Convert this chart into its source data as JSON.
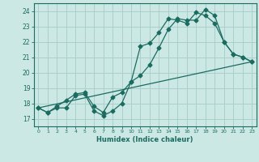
{
  "title": "",
  "xlabel": "Humidex (Indice chaleur)",
  "ylabel": "",
  "bg_color": "#cce8e4",
  "grid_color": "#aacfcb",
  "line_color": "#1a6b60",
  "xlim": [
    -0.5,
    23.5
  ],
  "ylim": [
    16.5,
    24.5
  ],
  "xticks": [
    0,
    1,
    2,
    3,
    4,
    5,
    6,
    7,
    8,
    9,
    10,
    11,
    12,
    13,
    14,
    15,
    16,
    17,
    18,
    19,
    20,
    21,
    22,
    23
  ],
  "yticks": [
    17,
    18,
    19,
    20,
    21,
    22,
    23,
    24
  ],
  "line1_x": [
    0,
    1,
    2,
    3,
    4,
    5,
    6,
    7,
    8,
    9,
    10,
    11,
    12,
    13,
    14,
    15,
    16,
    17,
    18,
    19,
    20,
    21,
    22,
    23
  ],
  "line1_y": [
    17.7,
    17.4,
    17.7,
    17.7,
    18.5,
    18.6,
    17.5,
    17.2,
    17.5,
    18.0,
    19.4,
    19.8,
    20.5,
    21.6,
    22.8,
    23.5,
    23.4,
    23.4,
    24.1,
    23.7,
    22.0,
    21.2,
    21.0,
    20.7
  ],
  "line2_x": [
    0,
    1,
    2,
    3,
    4,
    5,
    6,
    7,
    8,
    9,
    10,
    11,
    12,
    13,
    14,
    15,
    16,
    17,
    18,
    19,
    20,
    21,
    22,
    23
  ],
  "line2_y": [
    17.7,
    17.4,
    17.8,
    18.2,
    18.6,
    18.7,
    17.8,
    17.4,
    18.4,
    18.7,
    19.4,
    21.7,
    21.9,
    22.6,
    23.5,
    23.4,
    23.2,
    23.9,
    23.7,
    23.2,
    22.0,
    21.2,
    21.0,
    20.7
  ],
  "line3_x": [
    0,
    23
  ],
  "line3_y": [
    17.7,
    20.7
  ]
}
